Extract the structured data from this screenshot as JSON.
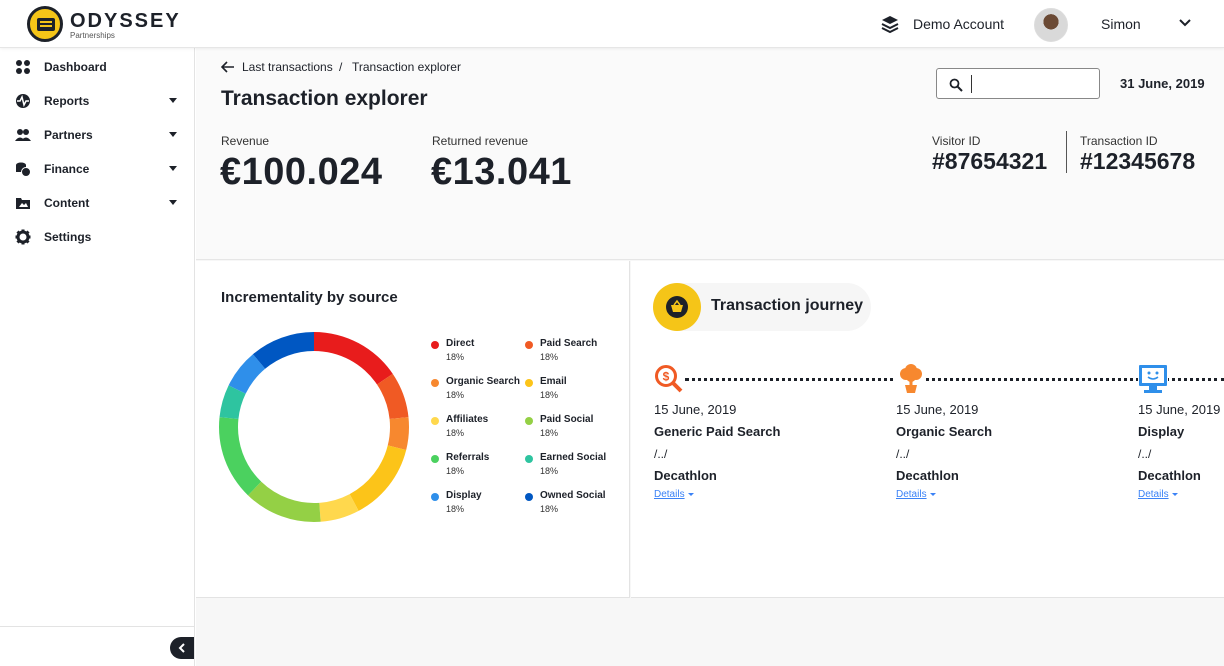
{
  "header": {
    "brand": "ODYSSEY",
    "brand_sub": "Partnerships",
    "account_label": "Demo Account",
    "user_name": "Simon"
  },
  "sidebar": {
    "items": [
      {
        "label": "Dashboard",
        "icon": "grid-icon",
        "has_caret": false
      },
      {
        "label": "Reports",
        "icon": "pulse-icon",
        "has_caret": true
      },
      {
        "label": "Partners",
        "icon": "users-icon",
        "has_caret": true
      },
      {
        "label": "Finance",
        "icon": "coins-icon",
        "has_caret": true
      },
      {
        "label": "Content",
        "icon": "folder-icon",
        "has_caret": true
      },
      {
        "label": "Settings",
        "icon": "gear-icon",
        "has_caret": false
      }
    ]
  },
  "breadcrumb": {
    "parent": "Last transactions",
    "separator": "/",
    "current": "Transaction explorer"
  },
  "page_title": "Transaction explorer",
  "search": {
    "value": "",
    "placeholder": ""
  },
  "date": "31 June, 2019",
  "metrics": {
    "revenue_label": "Revenue",
    "revenue_value": "€100.024",
    "returned_label": "Returned revenue",
    "returned_value": "€13.041"
  },
  "ids": {
    "visitor_label": "Visitor ID",
    "visitor_value": "#87654321",
    "transaction_label": "Transaction ID",
    "transaction_value": "#12345678"
  },
  "chart_data": {
    "type": "pie",
    "title": "Incrementality by  source",
    "categories": [
      "Direct",
      "Paid Search",
      "Organic Search",
      "Email",
      "Affiliates",
      "Paid Social",
      "Referrals",
      "Earned Social",
      "Display",
      "Owned Social"
    ],
    "value_labels": [
      "18%",
      "18%",
      "18%",
      "18%",
      "18%",
      "18%",
      "18%",
      "18%",
      "18%",
      "18%"
    ],
    "values": [
      18,
      18,
      18,
      18,
      18,
      18,
      18,
      18,
      18,
      18
    ],
    "ring_order": [
      "Direct",
      "Paid Search",
      "Organic Search",
      "Email",
      "Affiliates",
      "Paid Social",
      "Referrals",
      "Earned Social",
      "Display",
      "Owned Social"
    ],
    "ring_fractions": [
      0.14,
      0.07,
      0.05,
      0.12,
      0.06,
      0.12,
      0.13,
      0.05,
      0.06,
      0.1
    ],
    "colors": [
      "#e81c1c",
      "#f05a24",
      "#f7882f",
      "#fcc419",
      "#ffd84d",
      "#94d045",
      "#4bd15f",
      "#2ec4a0",
      "#2f8fea",
      "#0057c2"
    ],
    "legend_position": "right"
  },
  "journey": {
    "title": "Transaction journey",
    "steps": [
      {
        "date": "15 June, 2019",
        "source": "Generic Paid Search",
        "path": "/../",
        "merchant": "Decathlon",
        "details": "Details",
        "icon": "search-dollar-icon"
      },
      {
        "date": "15 June, 2019",
        "source": "Organic Search",
        "path": "/../",
        "merchant": "Decathlon",
        "details": "Details",
        "icon": "plant-icon"
      },
      {
        "date": "15 June, 2019",
        "source": "Display",
        "path": "/../",
        "merchant": "Decathlon",
        "details": "Details",
        "icon": "monitor-icon"
      }
    ]
  }
}
